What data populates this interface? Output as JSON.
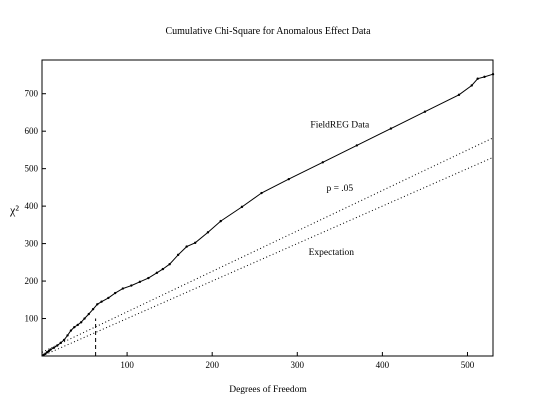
{
  "chart_data": {
    "type": "line",
    "title": "Cumulative Chi-Square  for Anomalous Effect Data",
    "xlabel": "Degrees  of Freedom",
    "ylabel": "χ²",
    "xlim": [
      0,
      530
    ],
    "ylim": [
      0,
      790
    ],
    "xticks": [
      100,
      200,
      300,
      400,
      500
    ],
    "yticks": [
      100,
      200,
      300,
      400,
      500,
      600,
      700
    ],
    "grid": false,
    "series": [
      {
        "name": "FieldREG Data",
        "style": "solid",
        "markers": true,
        "points": [
          [
            2,
            3
          ],
          [
            4,
            6
          ],
          [
            6,
            10
          ],
          [
            8,
            13
          ],
          [
            10,
            17
          ],
          [
            14,
            22
          ],
          [
            18,
            28
          ],
          [
            22,
            35
          ],
          [
            26,
            43
          ],
          [
            30,
            55
          ],
          [
            34,
            68
          ],
          [
            38,
            77
          ],
          [
            42,
            83
          ],
          [
            46,
            90
          ],
          [
            50,
            100
          ],
          [
            55,
            112
          ],
          [
            60,
            125
          ],
          [
            65,
            138
          ],
          [
            70,
            145
          ],
          [
            78,
            155
          ],
          [
            86,
            168
          ],
          [
            95,
            180
          ],
          [
            105,
            188
          ],
          [
            115,
            198
          ],
          [
            125,
            208
          ],
          [
            135,
            222
          ],
          [
            142,
            232
          ],
          [
            150,
            245
          ],
          [
            160,
            270
          ],
          [
            170,
            292
          ],
          [
            180,
            302
          ],
          [
            195,
            330
          ],
          [
            210,
            360
          ],
          [
            235,
            398
          ],
          [
            258,
            435
          ],
          [
            290,
            472
          ],
          [
            330,
            517
          ],
          [
            370,
            562
          ],
          [
            410,
            607
          ],
          [
            450,
            652
          ],
          [
            490,
            697
          ],
          [
            505,
            722
          ],
          [
            512,
            740
          ],
          [
            520,
            745
          ],
          [
            530,
            752
          ]
        ]
      },
      {
        "name": "p = .05",
        "style": "dotted",
        "points": [
          [
            0,
            10
          ],
          [
            530,
            582
          ]
        ]
      },
      {
        "name": "Expectation",
        "style": "dotted",
        "points": [
          [
            0,
            0
          ],
          [
            530,
            530
          ]
        ]
      }
    ],
    "reference_line": {
      "x": 63,
      "style": "dashed",
      "y_top": 100
    },
    "annotations": [
      {
        "text": "FieldREG Data",
        "x": 350,
        "y": 610
      },
      {
        "text": "p = .05",
        "x": 350,
        "y": 440
      },
      {
        "text": "Expectation",
        "x": 340,
        "y": 270
      }
    ]
  }
}
